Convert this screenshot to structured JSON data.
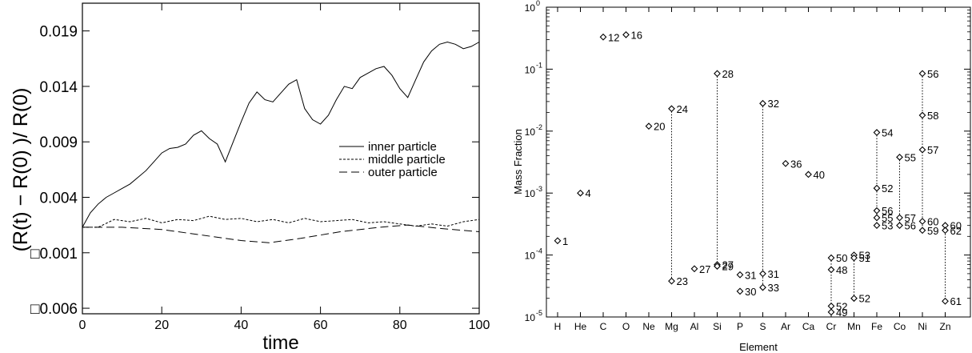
{
  "chart_data": [
    {
      "type": "line",
      "title": "",
      "xlabel": "time",
      "ylabel": "(R(t) − R(0) )/ R(0)",
      "xlim": [
        0,
        100
      ],
      "ylim": [
        -0.0065,
        0.0215
      ],
      "x_ticks": [
        0,
        20,
        40,
        60,
        80,
        100
      ],
      "y_ticks": [
        {
          "value": 0.019,
          "label": "0.019"
        },
        {
          "value": 0.014,
          "label": "0.014"
        },
        {
          "value": 0.009,
          "label": "0.009"
        },
        {
          "value": 0.004,
          "label": "0.004"
        },
        {
          "value": -0.001,
          "label": "□0.001"
        },
        {
          "value": -0.006,
          "label": "□0.006"
        }
      ],
      "grid": false,
      "legend_position": "center-right",
      "series": [
        {
          "name": "inner particle",
          "style": "solid",
          "x": [
            0,
            2,
            4,
            6,
            8,
            10,
            12,
            14,
            16,
            18,
            20,
            22,
            24,
            26,
            28,
            30,
            32,
            34,
            36,
            38,
            40,
            42,
            44,
            46,
            48,
            50,
            52,
            54,
            56,
            58,
            60,
            62,
            64,
            66,
            68,
            70,
            72,
            74,
            76,
            78,
            80,
            82,
            84,
            86,
            88,
            90,
            92,
            94,
            96,
            98,
            100
          ],
          "y": [
            0.0013,
            0.0026,
            0.0034,
            0.004,
            0.0044,
            0.0048,
            0.0052,
            0.0058,
            0.0064,
            0.0072,
            0.008,
            0.0084,
            0.0085,
            0.0088,
            0.0096,
            0.01,
            0.0093,
            0.0088,
            0.0072,
            0.009,
            0.0108,
            0.0125,
            0.0135,
            0.0128,
            0.0126,
            0.0134,
            0.0142,
            0.0146,
            0.012,
            0.011,
            0.0106,
            0.0114,
            0.0128,
            0.014,
            0.0138,
            0.0148,
            0.0152,
            0.0156,
            0.0158,
            0.015,
            0.0138,
            0.013,
            0.0146,
            0.0162,
            0.0172,
            0.0178,
            0.018,
            0.0178,
            0.0174,
            0.0176,
            0.018
          ]
        },
        {
          "name": "middle particle",
          "style": "dotted",
          "x": [
            0,
            4,
            8,
            12,
            16,
            20,
            24,
            28,
            32,
            36,
            40,
            44,
            48,
            52,
            56,
            60,
            64,
            68,
            72,
            76,
            80,
            84,
            88,
            92,
            96,
            100
          ],
          "y": [
            0.0013,
            0.0013,
            0.002,
            0.0018,
            0.0021,
            0.0017,
            0.002,
            0.0019,
            0.0023,
            0.002,
            0.0021,
            0.0018,
            0.002,
            0.0017,
            0.0021,
            0.0018,
            0.0019,
            0.002,
            0.0017,
            0.0018,
            0.0016,
            0.0014,
            0.0016,
            0.0014,
            0.0018,
            0.002
          ]
        },
        {
          "name": "outer particle",
          "style": "dashed",
          "x": [
            0,
            10,
            20,
            30,
            40,
            47,
            55,
            65,
            75,
            82,
            90,
            100
          ],
          "y": [
            0.0013,
            0.0013,
            0.0011,
            0.0006,
            0.0001,
            -0.0001,
            0.0003,
            0.0009,
            0.0013,
            0.0015,
            0.0012,
            0.0009
          ]
        }
      ]
    },
    {
      "type": "scatter",
      "title": "",
      "xlabel": "Element",
      "ylabel": "Mass Fraction",
      "yscale": "log",
      "ylim": [
        1e-05,
        1
      ],
      "categories": [
        "H",
        "He",
        "C",
        "O",
        "Ne",
        "Mg",
        "Al",
        "Si",
        "P",
        "S",
        "Ar",
        "Ca",
        "Cr",
        "Mn",
        "Fe",
        "Co",
        "Ni",
        "Zn"
      ],
      "y_ticks": [
        {
          "exp": "0",
          "value": 1
        },
        {
          "exp": "-1",
          "value": 0.1
        },
        {
          "exp": "-2",
          "value": 0.01
        },
        {
          "exp": "-3",
          "value": 0.001
        },
        {
          "exp": "-4",
          "value": 0.0001
        },
        {
          "exp": "-5",
          "value": 1e-05
        }
      ],
      "grid": false,
      "points": [
        {
          "element": "H",
          "isotope": "1",
          "value": 0.00017
        },
        {
          "element": "He",
          "isotope": "4",
          "value": 0.001
        },
        {
          "element": "C",
          "isotope": "12",
          "value": 0.33
        },
        {
          "element": "O",
          "isotope": "16",
          "value": 0.36
        },
        {
          "element": "Ne",
          "isotope": "20",
          "value": 0.012
        },
        {
          "element": "Mg",
          "isotope": "24",
          "value": 0.023
        },
        {
          "element": "Mg",
          "isotope": "23",
          "value": 3.8e-05
        },
        {
          "element": "Al",
          "isotope": "27",
          "value": 6e-05
        },
        {
          "element": "Si",
          "isotope": "28",
          "value": 0.085
        },
        {
          "element": "Si",
          "isotope": "27",
          "value": 7e-05
        },
        {
          "element": "Si",
          "isotope": "29",
          "value": 6.6e-05
        },
        {
          "element": "P",
          "isotope": "31",
          "value": 4.8e-05
        },
        {
          "element": "P",
          "isotope": "30",
          "value": 2.6e-05
        },
        {
          "element": "S",
          "isotope": "32",
          "value": 0.028
        },
        {
          "element": "S",
          "isotope": "31",
          "value": 5e-05
        },
        {
          "element": "S",
          "isotope": "33",
          "value": 3e-05
        },
        {
          "element": "Ar",
          "isotope": "36",
          "value": 0.003
        },
        {
          "element": "Ca",
          "isotope": "40",
          "value": 0.002
        },
        {
          "element": "Cr",
          "isotope": "50",
          "value": 9e-05
        },
        {
          "element": "Cr",
          "isotope": "48",
          "value": 5.8e-05
        },
        {
          "element": "Cr",
          "isotope": "52",
          "value": 1.5e-05
        },
        {
          "element": "Cr",
          "isotope": "49",
          "value": 1.2e-05
        },
        {
          "element": "Mn",
          "isotope": "53",
          "value": 0.0001
        },
        {
          "element": "Mn",
          "isotope": "51",
          "value": 9e-05
        },
        {
          "element": "Mn",
          "isotope": "52",
          "value": 2e-05
        },
        {
          "element": "Fe",
          "isotope": "54",
          "value": 0.0095
        },
        {
          "element": "Fe",
          "isotope": "52",
          "value": 0.0012
        },
        {
          "element": "Fe",
          "isotope": "56",
          "value": 0.00052
        },
        {
          "element": "Fe",
          "isotope": "55",
          "value": 0.0004
        },
        {
          "element": "Fe",
          "isotope": "53",
          "value": 0.0003
        },
        {
          "element": "Co",
          "isotope": "55",
          "value": 0.0038
        },
        {
          "element": "Co",
          "isotope": "57",
          "value": 0.0004
        },
        {
          "element": "Co",
          "isotope": "56",
          "value": 0.0003
        },
        {
          "element": "Ni",
          "isotope": "56",
          "value": 0.085
        },
        {
          "element": "Ni",
          "isotope": "58",
          "value": 0.018
        },
        {
          "element": "Ni",
          "isotope": "57",
          "value": 0.005
        },
        {
          "element": "Ni",
          "isotope": "60",
          "value": 0.00035
        },
        {
          "element": "Ni",
          "isotope": "59",
          "value": 0.00025
        },
        {
          "element": "Zn",
          "isotope": "60",
          "value": 0.0003
        },
        {
          "element": "Zn",
          "isotope": "62",
          "value": 0.00025
        },
        {
          "element": "Zn",
          "isotope": "61",
          "value": 1.8e-05
        }
      ],
      "connectors": [
        {
          "element": "Mg",
          "from": 0.023,
          "to": 3.8e-05
        },
        {
          "element": "Si",
          "from": 0.085,
          "to": 6.6e-05
        },
        {
          "element": "S",
          "from": 0.028,
          "to": 3e-05
        },
        {
          "element": "Cr",
          "from": 9e-05,
          "to": 1.2e-05
        },
        {
          "element": "Mn",
          "from": 0.0001,
          "to": 2e-05
        },
        {
          "element": "Fe",
          "from": 0.0095,
          "to": 0.0003
        },
        {
          "element": "Co",
          "from": 0.0038,
          "to": 0.0003
        },
        {
          "element": "Ni",
          "from": 0.085,
          "to": 0.00025
        },
        {
          "element": "Zn",
          "from": 0.0003,
          "to": 1.8e-05
        }
      ]
    }
  ]
}
